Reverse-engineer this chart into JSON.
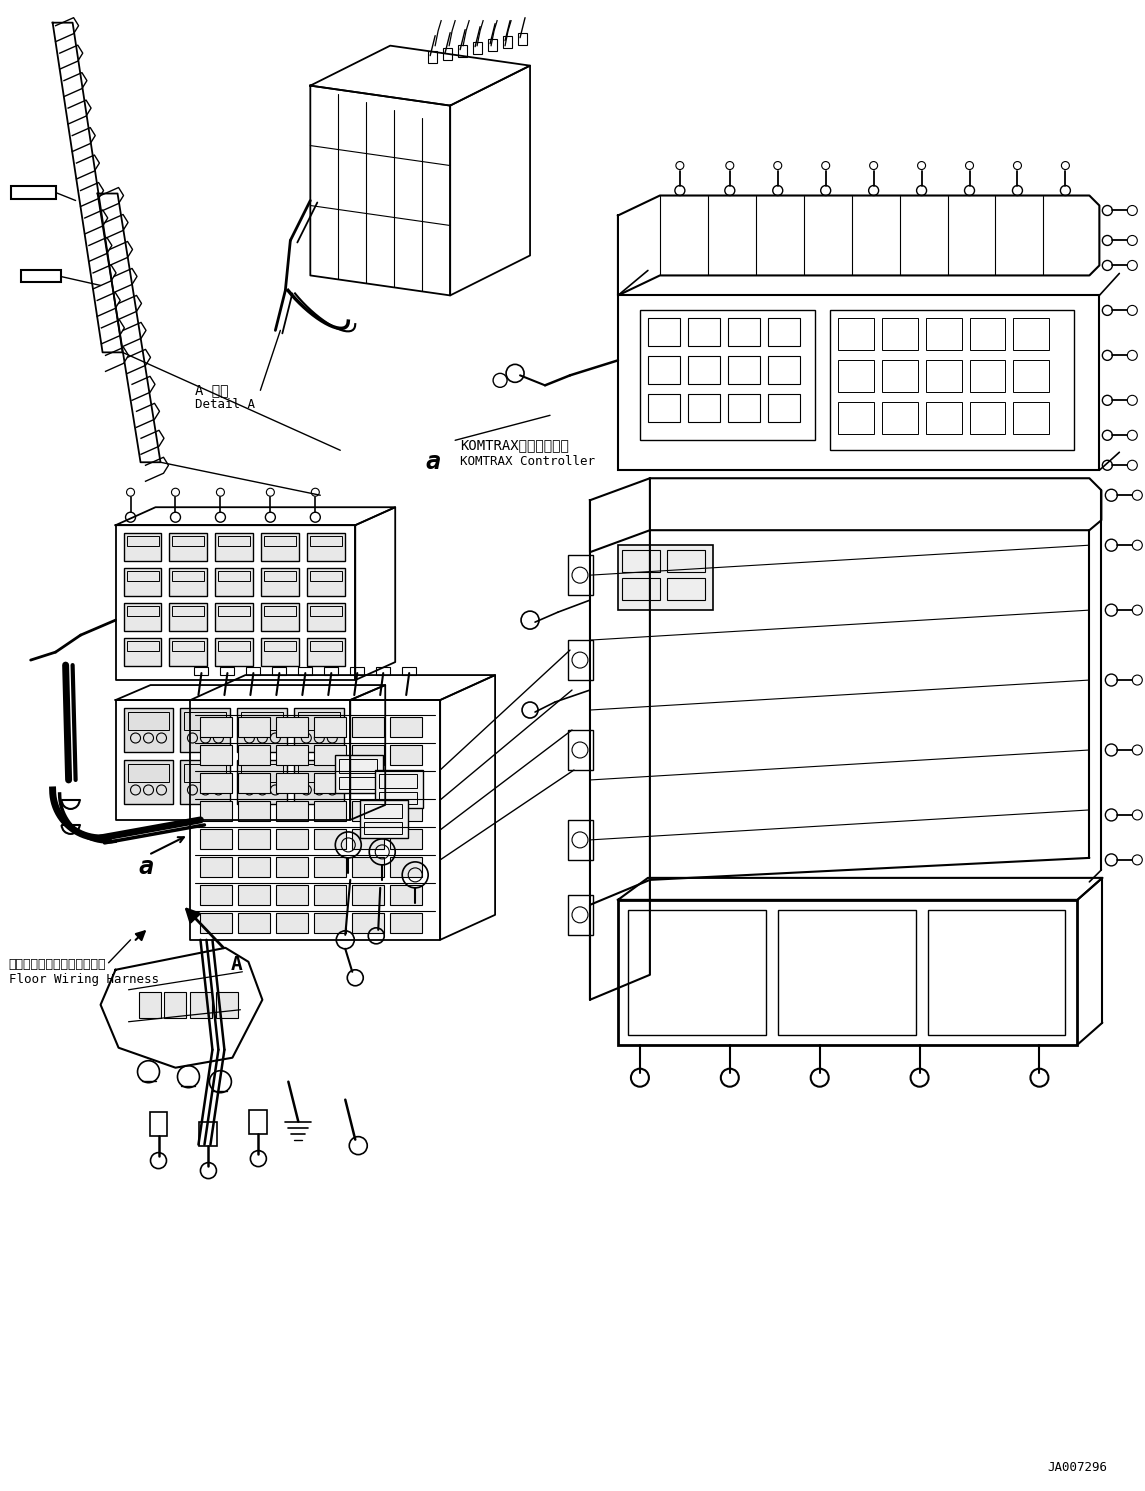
{
  "background_color": "#ffffff",
  "page_width": 11.45,
  "page_height": 14.91,
  "dpi": 100,
  "diagram_code": "JA007296",
  "detail_label_ja": "A 詳細",
  "detail_label_en": "Detail A",
  "komtrax_label_ja": "KOMTRAXコントローラ",
  "komtrax_label_en": "KOMTRAX Controller",
  "floor_harness_ja": "フロアワイヤリングハーネス",
  "floor_harness_en": "Floor Wiring Harness",
  "label_a_upper": "A",
  "label_a_lower": "a",
  "label_a_right": "a",
  "line_color": "#000000",
  "text_color": "#000000",
  "font_size_label": 11,
  "font_size_small": 9,
  "font_size_code": 9,
  "font_size_medium": 10
}
